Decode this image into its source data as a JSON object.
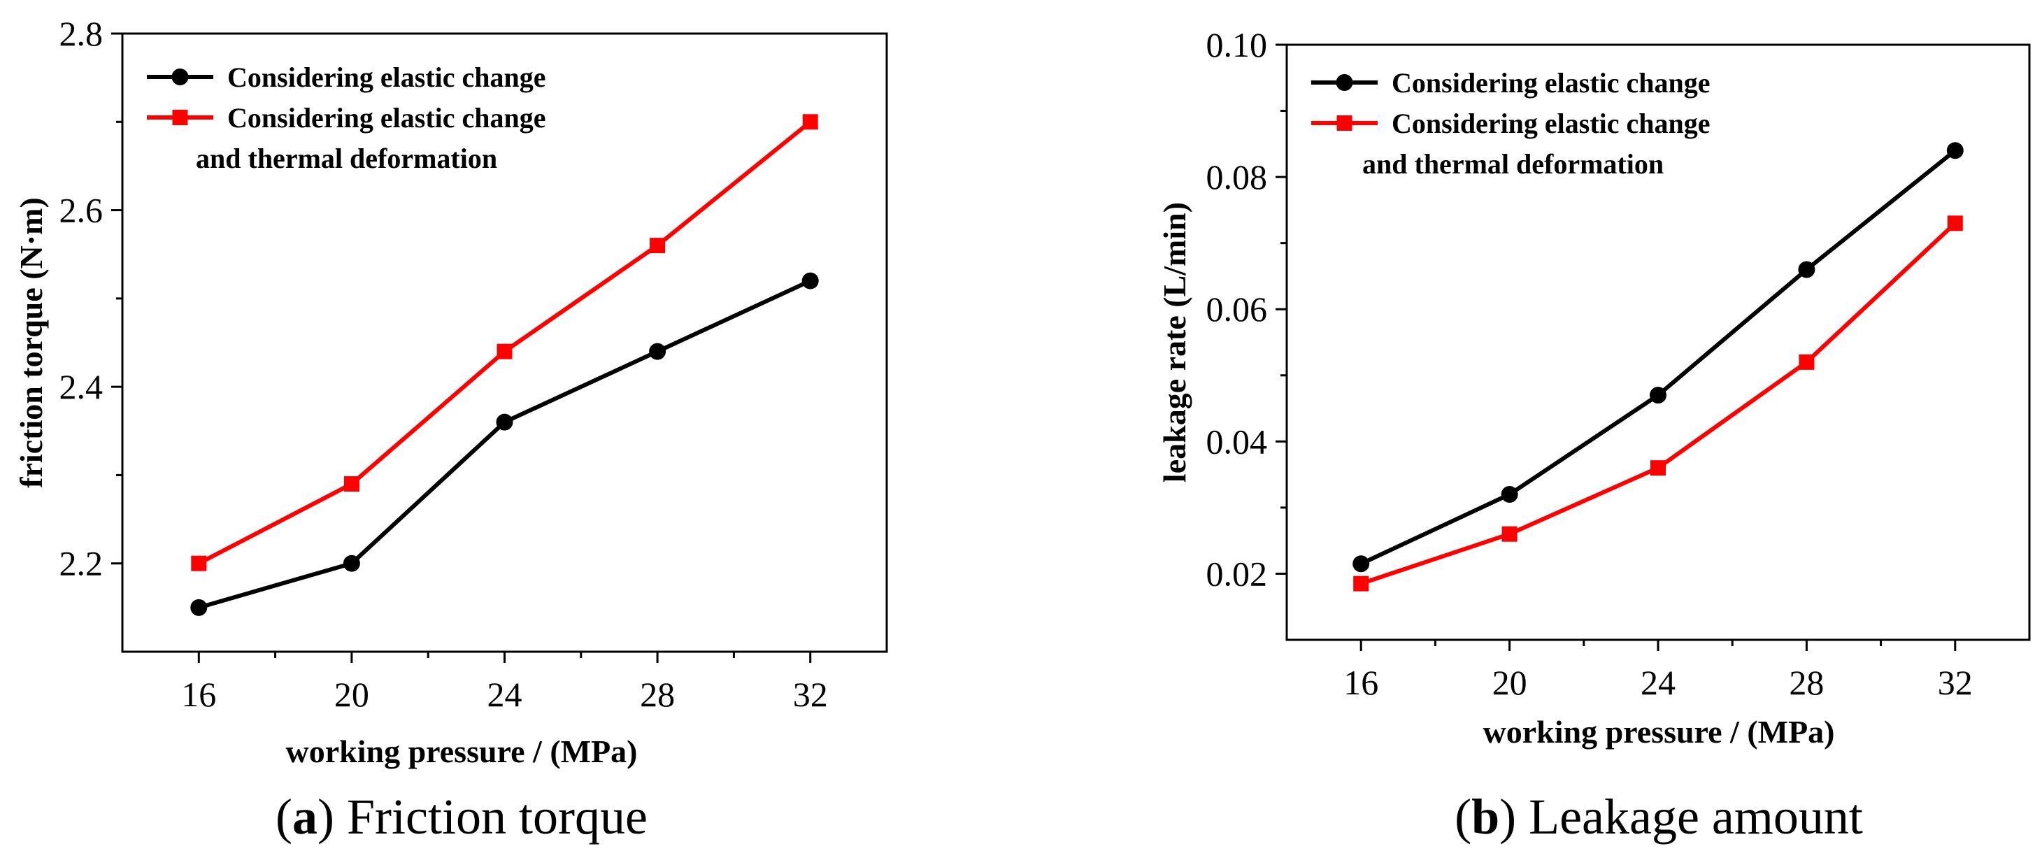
{
  "colors": {
    "series_black": "#000000",
    "series_red": "#ff0000"
  },
  "chart_data": [
    {
      "type": "line",
      "caption_letter": "a",
      "caption_open": "(",
      "caption_close": ")",
      "caption_text": " Friction torque",
      "xlabel": "working pressure / (MPa)",
      "ylabel": "friction torque (N·m)",
      "x": [
        16,
        20,
        24,
        28,
        32
      ],
      "x_ticks": [
        "16",
        "20",
        "24",
        "28",
        "32"
      ],
      "y_ticks": [
        "2.2",
        "2.4",
        "2.6",
        "2.8"
      ],
      "xlim": [
        14,
        34
      ],
      "ylim": [
        2.1,
        2.8
      ],
      "legend_position": "top-left",
      "series": [
        {
          "name": "Considering elastic change",
          "name_line2": "",
          "marker": "circle",
          "color": "#000000",
          "values": [
            2.15,
            2.2,
            2.36,
            2.44,
            2.52
          ]
        },
        {
          "name": "Considering elastic change",
          "name_line2": "and thermal deformation",
          "marker": "square",
          "color": "#ff0000",
          "values": [
            2.2,
            2.29,
            2.44,
            2.56,
            2.7
          ]
        }
      ]
    },
    {
      "type": "line",
      "caption_letter": "b",
      "caption_open": "(",
      "caption_close": ")",
      "caption_text": " Leakage amount",
      "xlabel": "working pressure / (MPa)",
      "ylabel": "leakage rate (L/min)",
      "x": [
        16,
        20,
        24,
        28,
        32
      ],
      "x_ticks": [
        "16",
        "20",
        "24",
        "28",
        "32"
      ],
      "y_ticks": [
        "0.02",
        "0.04",
        "0.06",
        "0.08",
        "0.10"
      ],
      "xlim": [
        14,
        34
      ],
      "ylim": [
        0.01,
        0.1
      ],
      "legend_position": "top-left",
      "series": [
        {
          "name": "Considering elastic change",
          "name_line2": "",
          "marker": "circle",
          "color": "#000000",
          "values": [
            0.0215,
            0.032,
            0.047,
            0.066,
            0.084
          ]
        },
        {
          "name": "Considering elastic change",
          "name_line2": "and thermal deformation",
          "marker": "square",
          "color": "#ff0000",
          "values": [
            0.0185,
            0.026,
            0.036,
            0.052,
            0.073
          ]
        }
      ]
    }
  ]
}
